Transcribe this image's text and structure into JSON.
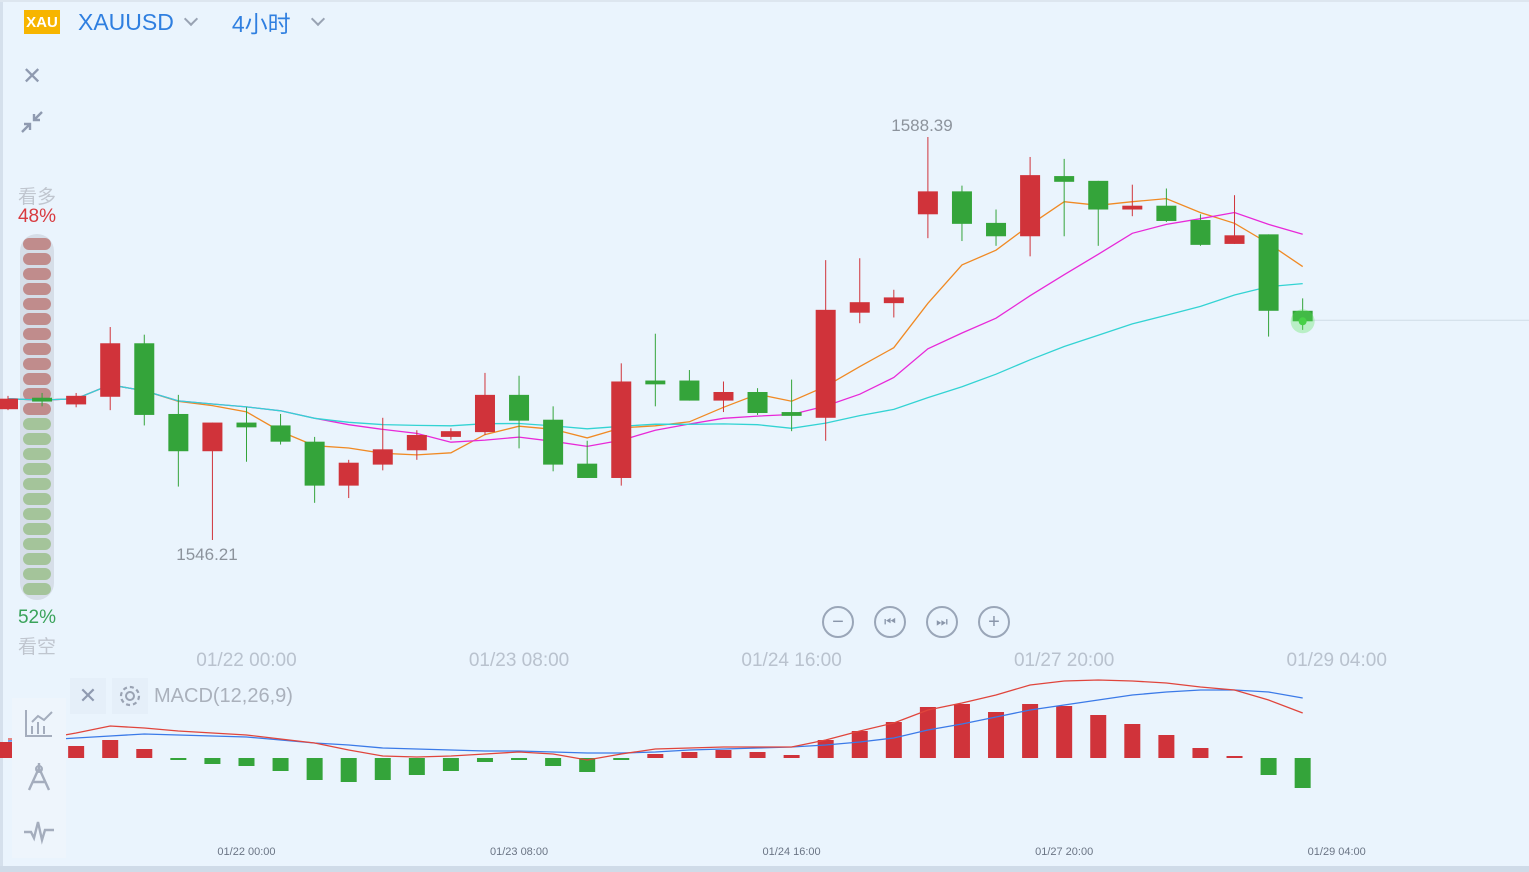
{
  "header": {
    "logo_text": "XAU",
    "symbol": "XAUUSD",
    "timeframe": "4小时"
  },
  "sentiment": {
    "bull_label": "看多",
    "bull_pct": "48%",
    "bear_label": "看空",
    "bear_pct": "52%",
    "bull_fraction": 0.48,
    "pill_count": 24
  },
  "controls": {
    "close_icon": "close-icon",
    "collapse_icon": "collapse-icon",
    "zoom_out": "−",
    "zoom_in": "+"
  },
  "indicator": {
    "label": "MACD(12,26,9)"
  },
  "colors": {
    "up": "#d0333a",
    "down": "#34a43a",
    "ma5": "#f08a24",
    "ma10": "#e829d8",
    "ma20": "#33d3d3",
    "dif": "#e0453c",
    "dea": "#3b7ae8"
  },
  "chart_data": {
    "type": "candlestick",
    "symbol": "XAUUSD",
    "interval": "4H",
    "annotations": {
      "high_label": "1588.39",
      "low_label": "1546.21"
    },
    "x_tick_labels": [
      "01/22 00:00",
      "01/23 08:00",
      "01/24 16:00",
      "01/27 20:00",
      "01/29 04:00"
    ],
    "x_tick_candle_index": [
      7,
      15,
      23,
      31,
      39
    ],
    "ylim": [
      1543,
      1592
    ],
    "moving_averages": [
      5,
      10,
      20
    ],
    "ohlc": [
      [
        1559.9,
        1561.3,
        1559.8,
        1561.0
      ],
      [
        1561.1,
        1561.6,
        1560.2,
        1560.7
      ],
      [
        1560.4,
        1561.6,
        1560.1,
        1561.3
      ],
      [
        1561.2,
        1568.5,
        1559.8,
        1566.8
      ],
      [
        1566.8,
        1567.7,
        1558.2,
        1559.3
      ],
      [
        1559.4,
        1561.4,
        1551.8,
        1555.5
      ],
      [
        1555.5,
        1558.5,
        1546.21,
        1558.5
      ],
      [
        1558.5,
        1560.1,
        1554.4,
        1558.0
      ],
      [
        1558.2,
        1559.4,
        1556.2,
        1556.5
      ],
      [
        1556.5,
        1557.0,
        1550.1,
        1551.9
      ],
      [
        1551.9,
        1554.6,
        1550.6,
        1554.3
      ],
      [
        1554.1,
        1559.0,
        1553.5,
        1555.7
      ],
      [
        1555.6,
        1557.7,
        1554.6,
        1557.2
      ],
      [
        1557.0,
        1557.9,
        1556.7,
        1557.6
      ],
      [
        1557.5,
        1563.7,
        1557.2,
        1561.4
      ],
      [
        1561.4,
        1563.4,
        1555.8,
        1558.7
      ],
      [
        1558.8,
        1560.2,
        1553.4,
        1554.1
      ],
      [
        1554.2,
        1556.6,
        1552.7,
        1552.7
      ],
      [
        1552.7,
        1564.7,
        1551.9,
        1562.8
      ],
      [
        1562.9,
        1567.8,
        1560.2,
        1562.5
      ],
      [
        1562.9,
        1564.0,
        1560.8,
        1560.8
      ],
      [
        1560.8,
        1562.8,
        1559.6,
        1561.7
      ],
      [
        1561.7,
        1562.1,
        1559.3,
        1559.5
      ],
      [
        1559.6,
        1563.0,
        1557.6,
        1559.2
      ],
      [
        1559.0,
        1575.5,
        1556.6,
        1570.3
      ],
      [
        1570.0,
        1575.7,
        1568.9,
        1571.1
      ],
      [
        1571.0,
        1572.4,
        1569.5,
        1571.6
      ],
      [
        1580.3,
        1588.39,
        1577.8,
        1582.7
      ],
      [
        1582.7,
        1583.3,
        1577.5,
        1579.3
      ],
      [
        1579.4,
        1580.8,
        1577.0,
        1578.0
      ],
      [
        1578.0,
        1586.3,
        1575.9,
        1584.4
      ],
      [
        1584.3,
        1586.1,
        1578.0,
        1583.7
      ],
      [
        1583.8,
        1583.8,
        1577.0,
        1580.8
      ],
      [
        1580.8,
        1583.4,
        1580.1,
        1581.2
      ],
      [
        1581.2,
        1583.0,
        1579.5,
        1579.6
      ],
      [
        1579.7,
        1580.3,
        1577.0,
        1577.1
      ],
      [
        1577.2,
        1582.3,
        1577.2,
        1578.1
      ],
      [
        1578.2,
        1578.2,
        1567.5,
        1570.2
      ],
      [
        1570.2,
        1571.5,
        1568.2,
        1569.1
      ]
    ],
    "macd": {
      "params": [
        12,
        26,
        9
      ],
      "hist": [
        16,
        13,
        12,
        18,
        9,
        -2,
        -6,
        -8,
        -13,
        -22,
        -24,
        -22,
        -17,
        -13,
        -4,
        -2,
        -8,
        -14,
        -2,
        4,
        6,
        8,
        6,
        3,
        18,
        27,
        36,
        51,
        54,
        46,
        54,
        52,
        43,
        34,
        23,
        10,
        1,
        -17,
        -30
      ],
      "dif": [
        19,
        19,
        25,
        32,
        30,
        27,
        25,
        23,
        19,
        15,
        8,
        2,
        1,
        2,
        4,
        6,
        4,
        -2,
        4,
        9,
        10,
        11,
        11,
        11,
        18,
        27,
        35,
        48,
        55,
        63,
        73,
        77,
        78,
        77,
        75,
        71,
        68,
        58,
        45
      ],
      "dea": [
        17,
        18,
        20,
        22,
        24,
        23,
        22,
        21,
        18,
        15,
        13,
        10,
        9,
        8,
        7,
        7,
        6,
        5,
        5,
        6,
        8,
        9,
        10,
        11,
        13,
        16,
        20,
        28,
        34,
        41,
        48,
        53,
        58,
        63,
        66,
        68,
        68,
        66,
        60
      ]
    }
  }
}
